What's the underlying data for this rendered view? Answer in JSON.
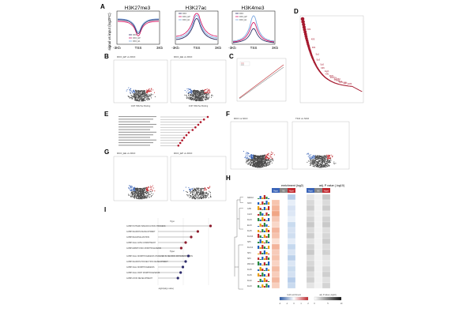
{
  "panels": {
    "a": "A",
    "b": "B",
    "c": "C",
    "d": "D",
    "e": "E",
    "f": "F",
    "g": "G",
    "h": "H",
    "i": "I"
  },
  "panel_a": {
    "ylabel": "signal vs input (log2FC)",
    "tss": "TSS",
    "left_tick": "-3Kb",
    "right_tick": "3Kb",
    "plots": [
      {
        "title": "H3K27me3",
        "legend": [
          "DKO",
          "DKO_EP",
          "DKO_E1"
        ]
      },
      {
        "title": "H3K27ac",
        "legend": [
          "DKO",
          "DKO_EP",
          "DKO_E1"
        ]
      },
      {
        "title": "H3K4me3",
        "legend": [
          "DKO",
          "DKO_EP",
          "DKO_E1"
        ]
      }
    ],
    "colors": {
      "dko": "#2d2d66",
      "ep": "#d61f69",
      "e1": "#7aa7e0"
    }
  },
  "panel_b": {
    "titles": [
      "DKO_EP vs DKO",
      "DKO_EE vs DKO"
    ],
    "xlabels": [
      "ChIP H3K27ac Binding",
      "ChIP H3K27ac Binding"
    ]
  },
  "panel_d": {
    "labels": [
      "Klf4",
      "Klf5",
      "Klf2",
      "Sp1",
      "Sp3",
      "Sp5",
      "Klf9",
      "Egr1",
      "Klf1",
      "Mzf1",
      "Zbtb7a",
      "Znf263",
      "Plag1",
      "Wt1",
      "Klf3",
      "Klf6",
      "Klf7",
      "E2f6"
    ]
  },
  "panel_f": {
    "titles": [
      "DKO vs SKO",
      "TKO vs SKO"
    ]
  },
  "panel_g": {
    "titles": [
      "DKO_EE vs DKO",
      "DKO_EP vs DKO"
    ]
  },
  "panel_h": {
    "header_enrich": "enrichment (log2)",
    "header_pval": "adj. P value (-log10)",
    "col_labels": [
      "Hypo",
      "NS",
      "Hyper",
      "Hypo",
      "NS",
      "Hyper"
    ],
    "rows": [
      "NR2C2",
      "NFIX",
      "GHF",
      "CLF3",
      "KLF4",
      "ELF3",
      "KLF5",
      "KLF10",
      "SP5",
      "KLF12",
      "SP4",
      "SP3",
      "ZNF148",
      "KLF6",
      "KLF9",
      "KLF2",
      "KLF3"
    ],
    "legend_left": "motif enrichment",
    "legend_right": "adj. P value (-log10)",
    "scale_left": [
      "-2",
      "-1",
      "0",
      "1",
      "2"
    ],
    "scale_right": [
      "0",
      "5",
      "10"
    ]
  },
  "panel_i": {
    "section1": "Hypo",
    "section2": "Hyper",
    "terms_hypo": [
      "GOBP PATTERN SPECIFICATION PROCESS",
      "GOBP NEURON DEVELOPMENT",
      "GOBP REGIONALIZATION",
      "GOBP CELL FATE COMMITMENT",
      "GOBP EMBRYONIC MORPHOGENESIS"
    ],
    "terms_hyper": [
      "GOBP CELL MORPHOGENESIS INVOLVED IN NEURON DIFFERENTIATION",
      "GOBP NEURON PROJECTION DEVELOPMENT",
      "GOBP CELL MORPHOGENESIS",
      "GOBP CELL PART MORPHOGENESIS",
      "GOBP AXON DEVELOPMENT"
    ],
    "xlabel": "-log10(adj.p.value)"
  }
}
